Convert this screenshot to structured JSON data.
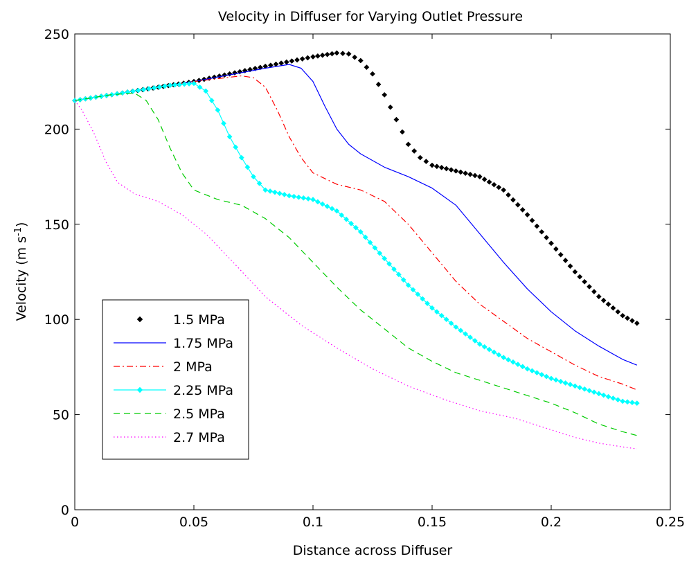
{
  "chart_data": {
    "type": "line",
    "title": "Velocity in Diffuser for Varying Outlet Pressure",
    "xlabel": "Distance across Diffuser",
    "ylabel_main": "Velocity (m s",
    "ylabel_sup": "-1",
    "ylabel_close": ")",
    "xlim": [
      0,
      0.25
    ],
    "ylim": [
      0,
      250
    ],
    "xticks": [
      0,
      0.05,
      0.1,
      0.15,
      0.2,
      0.25
    ],
    "xtick_labels": [
      "0",
      "0.05",
      "0.1",
      "0.15",
      "0.2",
      "0.25"
    ],
    "yticks": [
      0,
      50,
      100,
      150,
      200,
      250
    ],
    "ytick_labels": [
      "0",
      "50",
      "100",
      "150",
      "200",
      "250"
    ],
    "grid": false,
    "legend_placement": "lower-left",
    "series": [
      {
        "name": "1.5 MPa",
        "color": "#000000",
        "line": "none",
        "marker": "diamond",
        "points": [
          [
            0,
            215
          ],
          [
            0.02,
            219
          ],
          [
            0.05,
            225
          ],
          [
            0.08,
            233
          ],
          [
            0.1,
            238
          ],
          [
            0.11,
            240
          ],
          [
            0.115,
            239.5
          ],
          [
            0.12,
            236
          ],
          [
            0.125,
            229
          ],
          [
            0.13,
            218
          ],
          [
            0.135,
            205
          ],
          [
            0.14,
            192
          ],
          [
            0.145,
            185
          ],
          [
            0.15,
            181
          ],
          [
            0.16,
            178
          ],
          [
            0.17,
            175
          ],
          [
            0.18,
            168
          ],
          [
            0.19,
            155
          ],
          [
            0.2,
            140
          ],
          [
            0.21,
            125
          ],
          [
            0.22,
            112
          ],
          [
            0.23,
            102
          ],
          [
            0.236,
            98
          ]
        ]
      },
      {
        "name": "1.75 MPa",
        "color": "#0000ff",
        "line": "solid",
        "marker": "none",
        "points": [
          [
            0,
            215
          ],
          [
            0.02,
            219
          ],
          [
            0.05,
            225
          ],
          [
            0.08,
            232
          ],
          [
            0.09,
            234
          ],
          [
            0.095,
            232
          ],
          [
            0.1,
            225
          ],
          [
            0.105,
            212
          ],
          [
            0.11,
            200
          ],
          [
            0.115,
            192
          ],
          [
            0.12,
            187
          ],
          [
            0.13,
            180
          ],
          [
            0.14,
            175
          ],
          [
            0.15,
            169
          ],
          [
            0.16,
            160
          ],
          [
            0.17,
            145
          ],
          [
            0.18,
            130
          ],
          [
            0.19,
            116
          ],
          [
            0.2,
            104
          ],
          [
            0.21,
            94
          ],
          [
            0.22,
            86
          ],
          [
            0.23,
            79
          ],
          [
            0.236,
            76
          ]
        ]
      },
      {
        "name": "2 MPa",
        "color": "#ff0000",
        "line": "dashdot",
        "marker": "none",
        "points": [
          [
            0,
            215
          ],
          [
            0.02,
            219
          ],
          [
            0.05,
            225
          ],
          [
            0.07,
            228
          ],
          [
            0.075,
            227
          ],
          [
            0.08,
            222
          ],
          [
            0.085,
            210
          ],
          [
            0.09,
            196
          ],
          [
            0.095,
            185
          ],
          [
            0.1,
            177
          ],
          [
            0.11,
            171
          ],
          [
            0.12,
            168
          ],
          [
            0.13,
            162
          ],
          [
            0.14,
            150
          ],
          [
            0.15,
            135
          ],
          [
            0.16,
            120
          ],
          [
            0.17,
            108
          ],
          [
            0.18,
            99
          ],
          [
            0.19,
            90
          ],
          [
            0.2,
            83
          ],
          [
            0.21,
            76
          ],
          [
            0.22,
            70
          ],
          [
            0.23,
            66
          ],
          [
            0.236,
            63
          ]
        ]
      },
      {
        "name": "2.25 MPa",
        "color": "#00ffff",
        "line": "solid",
        "marker": "diamond",
        "points": [
          [
            0,
            215
          ],
          [
            0.02,
            219
          ],
          [
            0.04,
            223
          ],
          [
            0.05,
            224
          ],
          [
            0.055,
            220
          ],
          [
            0.06,
            210
          ],
          [
            0.065,
            196
          ],
          [
            0.07,
            185
          ],
          [
            0.075,
            175
          ],
          [
            0.08,
            168
          ],
          [
            0.09,
            165
          ],
          [
            0.1,
            163
          ],
          [
            0.11,
            157
          ],
          [
            0.12,
            146
          ],
          [
            0.13,
            132
          ],
          [
            0.14,
            118
          ],
          [
            0.15,
            106
          ],
          [
            0.16,
            96
          ],
          [
            0.17,
            87
          ],
          [
            0.18,
            80
          ],
          [
            0.19,
            74
          ],
          [
            0.2,
            69
          ],
          [
            0.21,
            65
          ],
          [
            0.22,
            61
          ],
          [
            0.23,
            57
          ],
          [
            0.236,
            56
          ]
        ]
      },
      {
        "name": "2.5 MPa",
        "color": "#00cc00",
        "line": "dashed",
        "marker": "none",
        "points": [
          [
            0,
            215
          ],
          [
            0.015,
            218
          ],
          [
            0.025,
            219
          ],
          [
            0.03,
            215
          ],
          [
            0.035,
            205
          ],
          [
            0.04,
            190
          ],
          [
            0.045,
            177
          ],
          [
            0.05,
            168
          ],
          [
            0.06,
            163
          ],
          [
            0.07,
            160
          ],
          [
            0.08,
            153
          ],
          [
            0.09,
            143
          ],
          [
            0.1,
            130
          ],
          [
            0.11,
            117
          ],
          [
            0.12,
            105
          ],
          [
            0.13,
            95
          ],
          [
            0.14,
            85
          ],
          [
            0.15,
            78
          ],
          [
            0.16,
            72
          ],
          [
            0.17,
            68
          ],
          [
            0.18,
            64
          ],
          [
            0.19,
            60
          ],
          [
            0.2,
            56
          ],
          [
            0.21,
            51
          ],
          [
            0.22,
            45
          ],
          [
            0.23,
            41
          ],
          [
            0.236,
            39
          ]
        ]
      },
      {
        "name": "2.7 MPa",
        "color": "#ff00ff",
        "line": "dotted",
        "marker": "none",
        "points": [
          [
            0,
            215
          ],
          [
            0.003,
            210
          ],
          [
            0.008,
            198
          ],
          [
            0.013,
            183
          ],
          [
            0.018,
            172
          ],
          [
            0.025,
            166
          ],
          [
            0.035,
            162
          ],
          [
            0.045,
            155
          ],
          [
            0.055,
            145
          ],
          [
            0.065,
            132
          ],
          [
            0.08,
            112
          ],
          [
            0.095,
            97
          ],
          [
            0.11,
            85
          ],
          [
            0.125,
            74
          ],
          [
            0.14,
            65
          ],
          [
            0.155,
            58
          ],
          [
            0.17,
            52
          ],
          [
            0.185,
            48
          ],
          [
            0.2,
            42
          ],
          [
            0.21,
            38
          ],
          [
            0.22,
            35
          ],
          [
            0.23,
            33
          ],
          [
            0.236,
            32
          ]
        ]
      }
    ]
  }
}
